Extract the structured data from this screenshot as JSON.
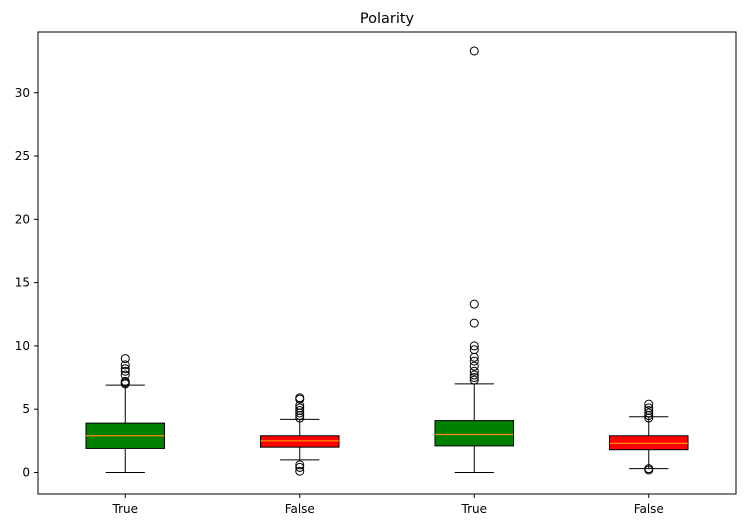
{
  "chart_data": {
    "type": "box",
    "title": "Polarity",
    "xlabel": "",
    "ylabel": "",
    "ylim": [
      -1.7,
      34.8
    ],
    "yticks": [
      0,
      5,
      10,
      15,
      20,
      25,
      30
    ],
    "grid": false,
    "colors": {
      "true_box": "#008000",
      "false_box": "#ff0000",
      "median": "#ff8c00",
      "outline": "#000000"
    },
    "boxes": [
      {
        "label": "True",
        "fill": "#008000",
        "whisker_low": 0.0,
        "q1": 1.9,
        "median": 2.9,
        "q3": 3.9,
        "whisker_high": 6.9,
        "outliers": [
          7.0,
          7.1,
          7.2,
          7.7,
          8.0,
          8.2,
          8.5,
          9.0
        ]
      },
      {
        "label": "False",
        "fill": "#ff0000",
        "whisker_low": 1.0,
        "q1": 2.0,
        "median": 2.5,
        "q3": 2.9,
        "whisker_high": 4.2,
        "outliers": [
          0.1,
          0.4,
          0.6,
          4.3,
          4.5,
          4.7,
          4.9,
          5.1,
          5.3,
          5.8,
          5.9
        ]
      },
      {
        "label": "True",
        "fill": "#008000",
        "whisker_low": 0.0,
        "q1": 2.1,
        "median": 3.0,
        "q3": 4.1,
        "whisker_high": 7.0,
        "outliers": [
          7.3,
          7.5,
          7.7,
          8.0,
          8.4,
          8.8,
          9.1,
          9.7,
          10.0,
          11.8,
          13.3,
          33.3
        ]
      },
      {
        "label": "False",
        "fill": "#ff0000",
        "whisker_low": 0.3,
        "q1": 1.8,
        "median": 2.3,
        "q3": 2.9,
        "whisker_high": 4.4,
        "outliers": [
          0.2,
          0.3,
          4.3,
          4.5,
          4.7,
          4.9,
          5.1,
          5.4
        ]
      }
    ]
  }
}
